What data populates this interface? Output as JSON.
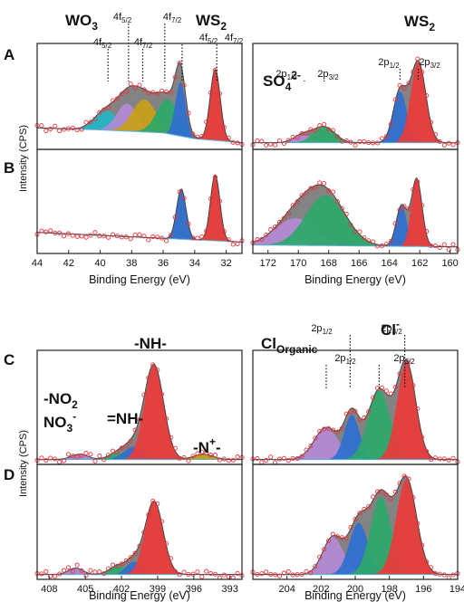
{
  "figure_labels": [
    "A",
    "B",
    "C",
    "D"
  ],
  "chart_data": [
    {
      "id": "W4f",
      "type": "area",
      "panels": [
        "A",
        "B"
      ],
      "xlabel": "Binding Energy (eV)",
      "ylabel": "Intensity (CPS)",
      "xlim": [
        44,
        31
      ],
      "xticks": [
        44,
        42,
        40,
        38,
        36,
        34,
        32
      ],
      "groups": [
        {
          "label": "WO",
          "sub": "3",
          "sup": ""
        },
        {
          "label": "WS",
          "sub": "2",
          "sup": ""
        }
      ],
      "peak_labels": [
        {
          "text": "4f",
          "sub": "5/2",
          "x": 39.5
        },
        {
          "text": "4f",
          "sub": "7/2",
          "x": 37.3
        },
        {
          "text": "4f",
          "sub": "5/2",
          "x": 38.2
        },
        {
          "text": "4f",
          "sub": "7/2",
          "x": 35.9
        },
        {
          "text": "4f",
          "sub": "5/2",
          "x": 34.8
        },
        {
          "text": "4f",
          "sub": "7/2",
          "x": 32.6
        }
      ],
      "rows": [
        {
          "panel": "A",
          "ylim": [
            0,
            1
          ],
          "baseline": {
            "x": [
              44,
              40,
              36,
              34,
              31
            ],
            "y": [
              0.19,
              0.17,
              0.14,
              0.08,
              0.04
            ]
          },
          "peaks": [
            {
              "center": 39.6,
              "height": 0.2,
              "width": 0.75,
              "color": "#26b5c4"
            },
            {
              "center": 38.3,
              "height": 0.28,
              "width": 0.65,
              "color": "#b48ad6"
            },
            {
              "center": 37.2,
              "height": 0.33,
              "width": 0.75,
              "color": "#c9a018"
            },
            {
              "center": 35.7,
              "height": 0.35,
              "width": 0.7,
              "color": "#2ea86a"
            },
            {
              "center": 34.9,
              "height": 0.55,
              "width": 0.32,
              "color": "#2f6fd1"
            },
            {
              "center": 32.7,
              "height": 0.72,
              "width": 0.32,
              "color": "#ec3b3b"
            }
          ]
        },
        {
          "panel": "B",
          "ylim": [
            0,
            1
          ],
          "baseline": {
            "x": [
              44,
              31
            ],
            "y": [
              0.19,
              0.09
            ]
          },
          "peaks": [
            {
              "center": 34.85,
              "height": 0.52,
              "width": 0.3,
              "color": "#2f6fd1"
            },
            {
              "center": 32.7,
              "height": 0.68,
              "width": 0.3,
              "color": "#ec3b3b"
            }
          ]
        }
      ]
    },
    {
      "id": "S2p",
      "type": "area",
      "panels": [
        "A",
        "B"
      ],
      "xlabel": "Binding Energy (eV)",
      "ylabel": "",
      "xlim": [
        173,
        159.5
      ],
      "xticks": [
        172,
        170,
        168,
        166,
        164,
        162,
        160
      ],
      "groups": [
        {
          "label": "SO",
          "sub": "4",
          "sup": "2-"
        },
        {
          "label": "WS",
          "sub": "2",
          "sup": ""
        }
      ],
      "peak_labels": [
        {
          "text": "2p",
          "sub": "1/2",
          "x": 169.6
        },
        {
          "text": "2p",
          "sub": "3/2",
          "x": 168.3
        },
        {
          "text": "2p",
          "sub": "1/2",
          "x": 163.3
        },
        {
          "text": "2p",
          "sub": "3/2",
          "x": 162.1
        }
      ],
      "rows": [
        {
          "panel": "A",
          "ylim": [
            0,
            1
          ],
          "baseline": {
            "x": [
              173,
              159.5
            ],
            "y": [
              0.04,
              0.04
            ]
          },
          "peaks": [
            {
              "center": 169.7,
              "height": 0.08,
              "width": 0.6,
              "color": "#b48ad6"
            },
            {
              "center": 168.3,
              "height": 0.16,
              "width": 0.7,
              "color": "#2ea86a"
            },
            {
              "center": 163.3,
              "height": 0.52,
              "width": 0.45,
              "color": "#2f6fd1"
            },
            {
              "center": 162.1,
              "height": 0.82,
              "width": 0.5,
              "color": "#ec3b3b"
            }
          ]
        },
        {
          "panel": "B",
          "ylim": [
            0,
            1
          ],
          "baseline": {
            "x": [
              173,
              159.5
            ],
            "y": [
              0.06,
              0.04
            ]
          },
          "peaks": [
            {
              "center": 170.2,
              "height": 0.28,
              "width": 1.3,
              "color": "#b48ad6"
            },
            {
              "center": 168.2,
              "height": 0.52,
              "width": 1.3,
              "color": "#2ea86a"
            },
            {
              "center": 163.2,
              "height": 0.42,
              "width": 0.35,
              "color": "#2f6fd1"
            },
            {
              "center": 162.2,
              "height": 0.7,
              "width": 0.35,
              "color": "#ec3b3b"
            }
          ]
        }
      ]
    },
    {
      "id": "N1s",
      "type": "area",
      "panels": [
        "C",
        "D"
      ],
      "xlabel": "Binding Energy (eV)",
      "ylabel": "Intensity (CPS)",
      "xlim": [
        409,
        392
      ],
      "xticks": [
        408,
        405,
        402,
        399,
        396,
        393
      ],
      "groups": [
        {
          "label": "-NO",
          "sub": "2",
          "sup": ""
        },
        {
          "label": "NO",
          "sub": "3",
          "sup": "-"
        },
        {
          "label": "=NH-",
          "sub": "",
          "sup": ""
        },
        {
          "label": "-NH-",
          "sub": "",
          "sup": ""
        },
        {
          "label": "-N",
          "sub": "",
          "sup": "+",
          "tail": "-"
        }
      ],
      "peak_labels": [],
      "rows": [
        {
          "panel": "C",
          "ylim": [
            0,
            1
          ],
          "baseline": {
            "x": [
              409,
              392
            ],
            "y": [
              0.02,
              0.02
            ]
          },
          "peaks": [
            {
              "center": 405.5,
              "height": 0.05,
              "width": 0.7,
              "color": "#b48ad6"
            },
            {
              "center": 402.2,
              "height": 0.06,
              "width": 0.8,
              "color": "#2ea86a"
            },
            {
              "center": 401.0,
              "height": 0.12,
              "width": 0.8,
              "color": "#2f6fd1"
            },
            {
              "center": 399.3,
              "height": 0.88,
              "width": 0.8,
              "color": "#ec3b3b"
            },
            {
              "center": 395.2,
              "height": 0.05,
              "width": 0.8,
              "color": "#c9a018"
            }
          ]
        },
        {
          "panel": "D",
          "ylim": [
            0,
            1
          ],
          "baseline": {
            "x": [
              409,
              392
            ],
            "y": [
              0.02,
              0.02
            ]
          },
          "peaks": [
            {
              "center": 405.8,
              "height": 0.06,
              "width": 0.6,
              "color": "#b48ad6"
            },
            {
              "center": 402.3,
              "height": 0.08,
              "width": 0.7,
              "color": "#2ea86a"
            },
            {
              "center": 401.0,
              "height": 0.12,
              "width": 0.6,
              "color": "#2f6fd1"
            },
            {
              "center": 399.3,
              "height": 0.68,
              "width": 0.75,
              "color": "#ec3b3b"
            }
          ]
        }
      ]
    },
    {
      "id": "Cl2p",
      "type": "area",
      "panels": [
        "C",
        "D"
      ],
      "xlabel": "Binding Energy (eV)",
      "ylabel": "",
      "xlim": [
        206,
        194
      ],
      "xticks": [
        204,
        202,
        200,
        198,
        196,
        194
      ],
      "groups": [
        {
          "label": "Cl",
          "sub": "Organic",
          "sup": ""
        },
        {
          "label": "Cl",
          "sub": "",
          "sup": "-"
        }
      ],
      "peak_labels": [
        {
          "text": "2p",
          "sub": "1/2",
          "x": 201.7
        },
        {
          "text": "2p",
          "sub": "3/2",
          "x": 198.6
        },
        {
          "text": "2p",
          "sub": "1/2",
          "x": 200.3
        },
        {
          "text": "2p",
          "sub": "3/2",
          "x": 197.1
        }
      ],
      "rows": [
        {
          "panel": "C",
          "ylim": [
            0,
            1
          ],
          "baseline": {
            "x": [
              206,
              194
            ],
            "y": [
              0.02,
              0.02
            ]
          },
          "peaks": [
            {
              "center": 201.7,
              "height": 0.3,
              "width": 0.7,
              "color": "#b48ad6"
            },
            {
              "center": 200.2,
              "height": 0.42,
              "width": 0.45,
              "color": "#2f6fd1"
            },
            {
              "center": 198.6,
              "height": 0.65,
              "width": 0.65,
              "color": "#2ea86a"
            },
            {
              "center": 197.0,
              "height": 0.9,
              "width": 0.55,
              "color": "#ec3b3b"
            }
          ]
        },
        {
          "panel": "D",
          "ylim": [
            0,
            1
          ],
          "baseline": {
            "x": [
              206,
              194
            ],
            "y": [
              0.02,
              0.02
            ]
          },
          "peaks": [
            {
              "center": 201.3,
              "height": 0.35,
              "width": 0.6,
              "color": "#b48ad6"
            },
            {
              "center": 199.8,
              "height": 0.48,
              "width": 0.55,
              "color": "#2f6fd1"
            },
            {
              "center": 198.5,
              "height": 0.72,
              "width": 0.6,
              "color": "#2ea86a"
            },
            {
              "center": 197.0,
              "height": 0.88,
              "width": 0.6,
              "color": "#ec3b3b"
            }
          ]
        }
      ]
    }
  ]
}
